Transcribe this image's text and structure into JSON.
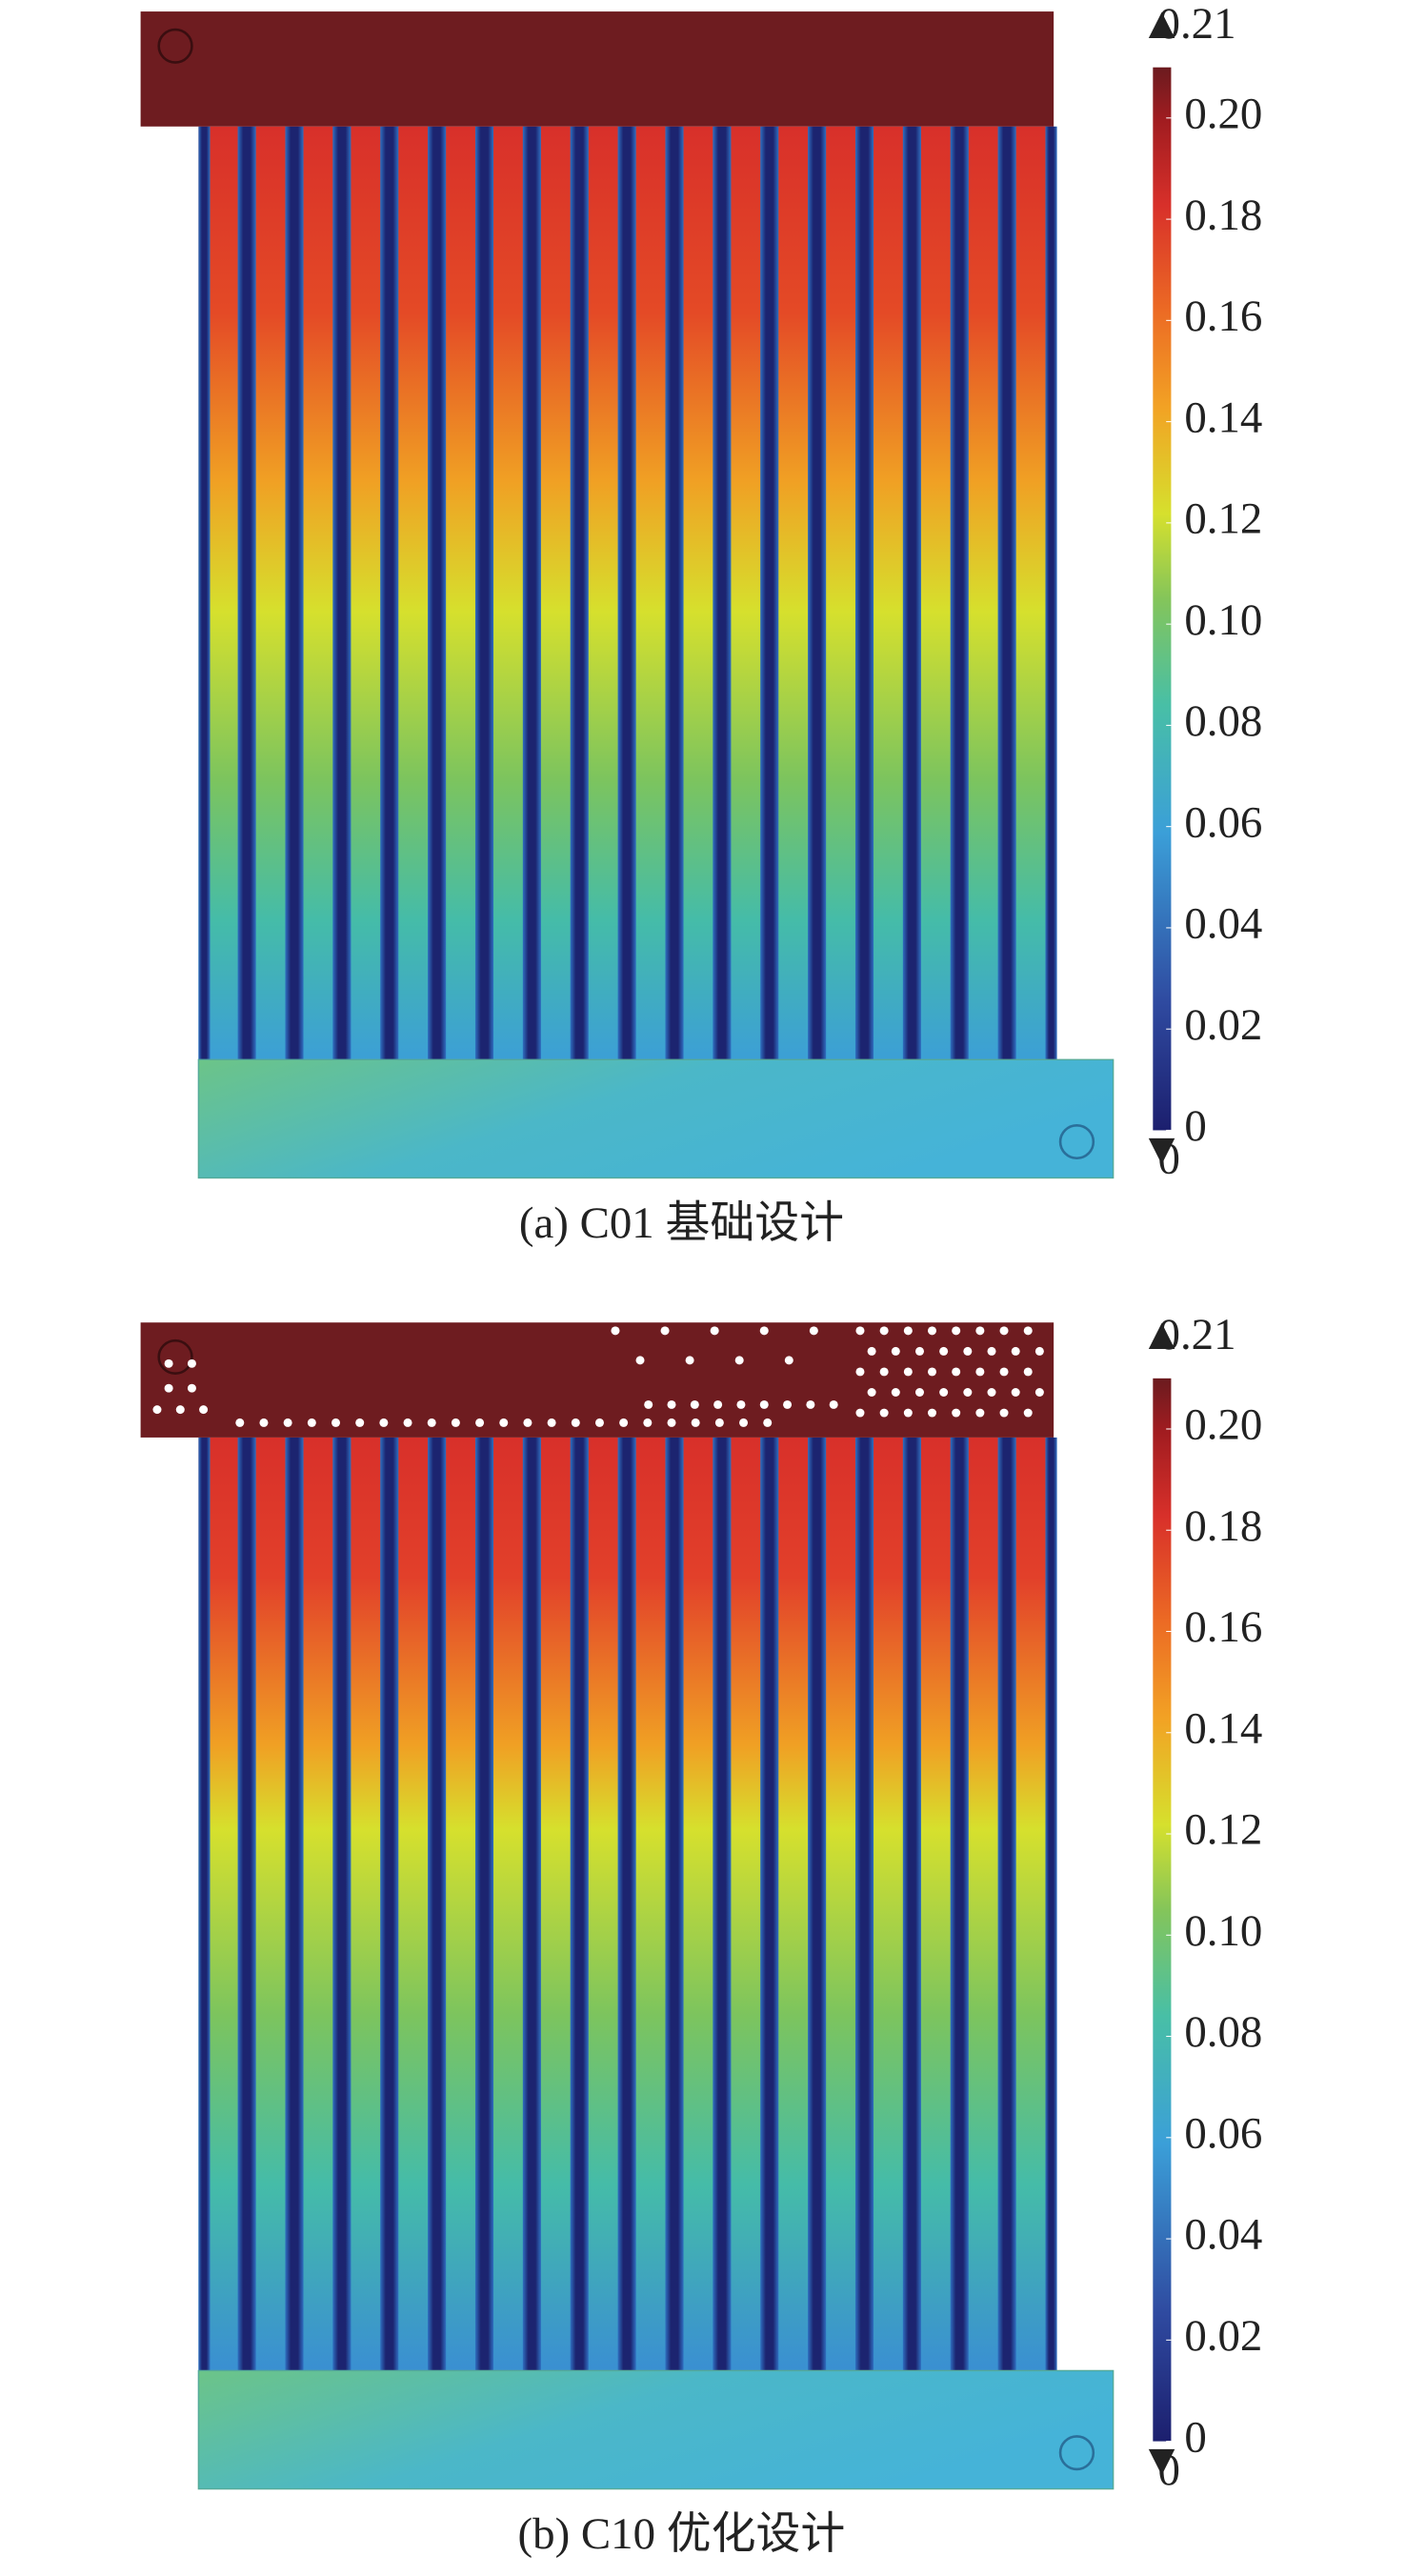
{
  "panels": [
    {
      "caption": "(a) C01 基础设计",
      "colorbar": {
        "lim": [
          0,
          0.21
        ],
        "max": 0.21,
        "min": 0,
        "ticks": [
          0,
          0.02,
          0.04,
          0.06,
          0.08,
          {
            "value": 0.1,
            "label": "0.10"
          },
          0.12,
          0.14,
          0.16,
          0.18,
          {
            "value": 0.2,
            "label": "0.20"
          }
        ]
      }
    },
    {
      "caption": "(b) C10 优化设计",
      "colorbar": {
        "lim": [
          0,
          0.21
        ],
        "max": 0.21,
        "min": 0,
        "ticks": [
          0,
          0.02,
          0.04,
          0.06,
          0.08,
          {
            "value": 0.1,
            "label": "0.10"
          },
          0.12,
          0.14,
          0.16,
          0.18,
          {
            "value": 0.2,
            "label": "0.20"
          }
        ]
      }
    }
  ]
}
